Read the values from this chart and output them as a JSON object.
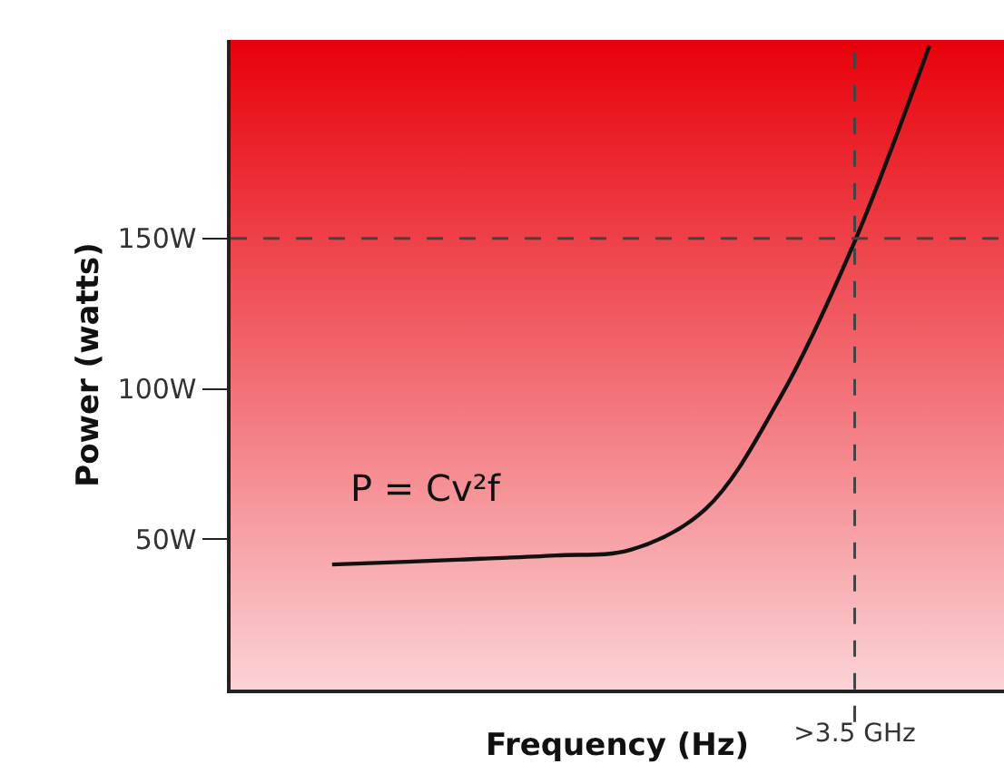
{
  "chart_data": {
    "type": "line",
    "xlabel": "Frequency (Hz)",
    "ylabel": "Power (watts)",
    "categories": [
      null,
      null,
      null,
      null,
      null,
      null,
      null,
      ">3.5 GHz",
      null
    ],
    "series": [
      {
        "color": "#111111",
        "values": [
          41.6,
          42.5,
          43.5,
          44.6,
          46.5,
          60,
          97,
          149,
          214
        ]
      }
    ],
    "ylim": [
      0,
      216
    ],
    "yticks": [
      {
        "value": 50,
        "label": "50W"
      },
      {
        "value": 100,
        "label": "100W"
      },
      {
        "value": 150,
        "label": "150W"
      }
    ],
    "ref_lines": [
      {
        "axis": "y",
        "value": 150,
        "color": "#444444",
        "line_style": "dashed"
      },
      {
        "axis": "x",
        "value": ">3.5 GHz",
        "color": "#444444",
        "line_style": "dashed"
      }
    ],
    "annotations": [
      "P = Cv²f"
    ],
    "grid": false,
    "marker": "none",
    "line_style": "solid"
  }
}
